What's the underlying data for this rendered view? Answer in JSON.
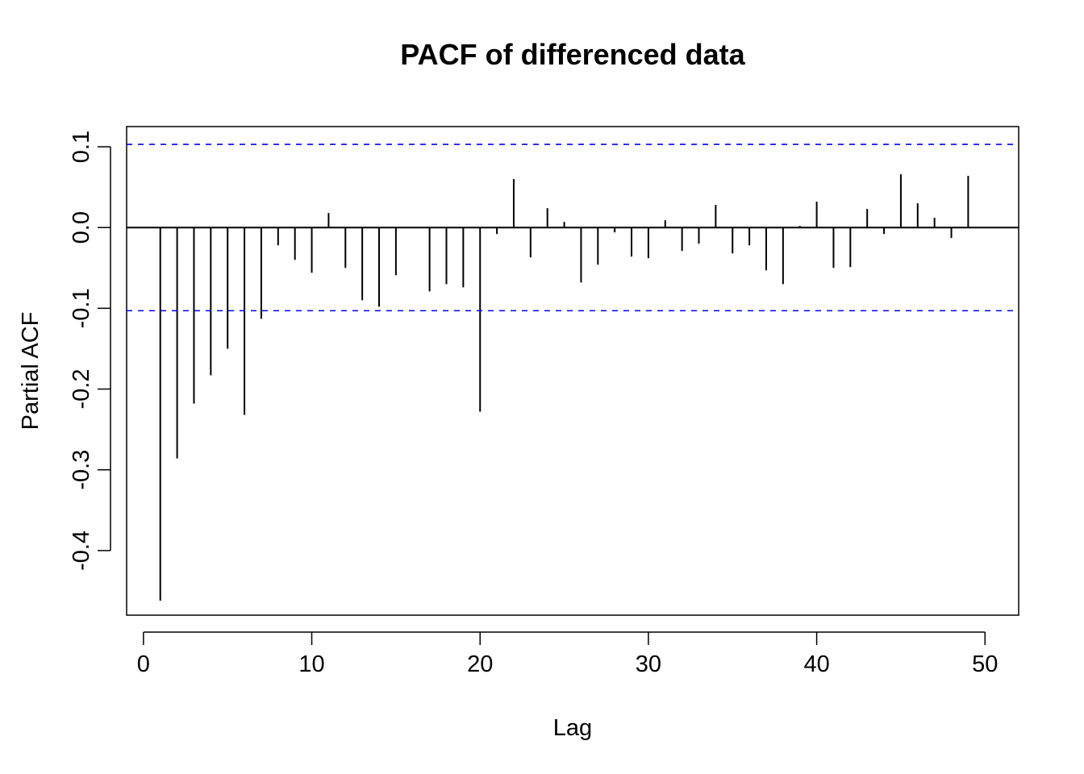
{
  "chart_data": {
    "type": "bar",
    "title": "PACF of differenced data",
    "xlabel": "Lag",
    "ylabel": "Partial ACF",
    "xlim": [
      -1,
      52
    ],
    "ylim": [
      -0.48,
      0.125
    ],
    "x_ticks": [
      0,
      10,
      20,
      30,
      40,
      50
    ],
    "x_tick_labels": [
      "0",
      "10",
      "20",
      "30",
      "40",
      "50"
    ],
    "y_ticks": [
      0.1,
      0.0,
      -0.1,
      -0.2,
      -0.3,
      -0.4
    ],
    "y_tick_labels": [
      "0.1",
      "0.0",
      "-0.1",
      "-0.2",
      "-0.3",
      "-0.4"
    ],
    "confidence_bounds": [
      0.103,
      -0.103
    ],
    "grid": false,
    "colors": {
      "spikes": "#000000",
      "bounds": "#0000ff",
      "zero_line": "#000000"
    },
    "x": [
      1,
      2,
      3,
      4,
      5,
      6,
      7,
      8,
      9,
      10,
      11,
      12,
      13,
      14,
      15,
      16,
      17,
      18,
      19,
      20,
      21,
      22,
      23,
      24,
      25,
      26,
      27,
      28,
      29,
      30,
      31,
      32,
      33,
      34,
      35,
      36,
      37,
      38,
      39,
      40,
      41,
      42,
      43,
      44,
      45,
      46,
      47,
      48,
      49
    ],
    "values": [
      -0.462,
      -0.286,
      -0.218,
      -0.183,
      -0.15,
      -0.232,
      -0.113,
      -0.022,
      -0.04,
      -0.056,
      0.018,
      -0.05,
      -0.09,
      -0.098,
      -0.059,
      0.0,
      -0.079,
      -0.07,
      -0.074,
      -0.228,
      -0.008,
      0.06,
      -0.037,
      0.024,
      0.007,
      -0.068,
      -0.046,
      -0.006,
      -0.036,
      -0.038,
      0.009,
      -0.029,
      -0.02,
      0.028,
      -0.032,
      -0.022,
      -0.053,
      -0.07,
      0.002,
      0.032,
      -0.05,
      -0.049,
      0.023,
      -0.008,
      0.066,
      0.03,
      0.012,
      -0.013,
      0.064
    ]
  }
}
